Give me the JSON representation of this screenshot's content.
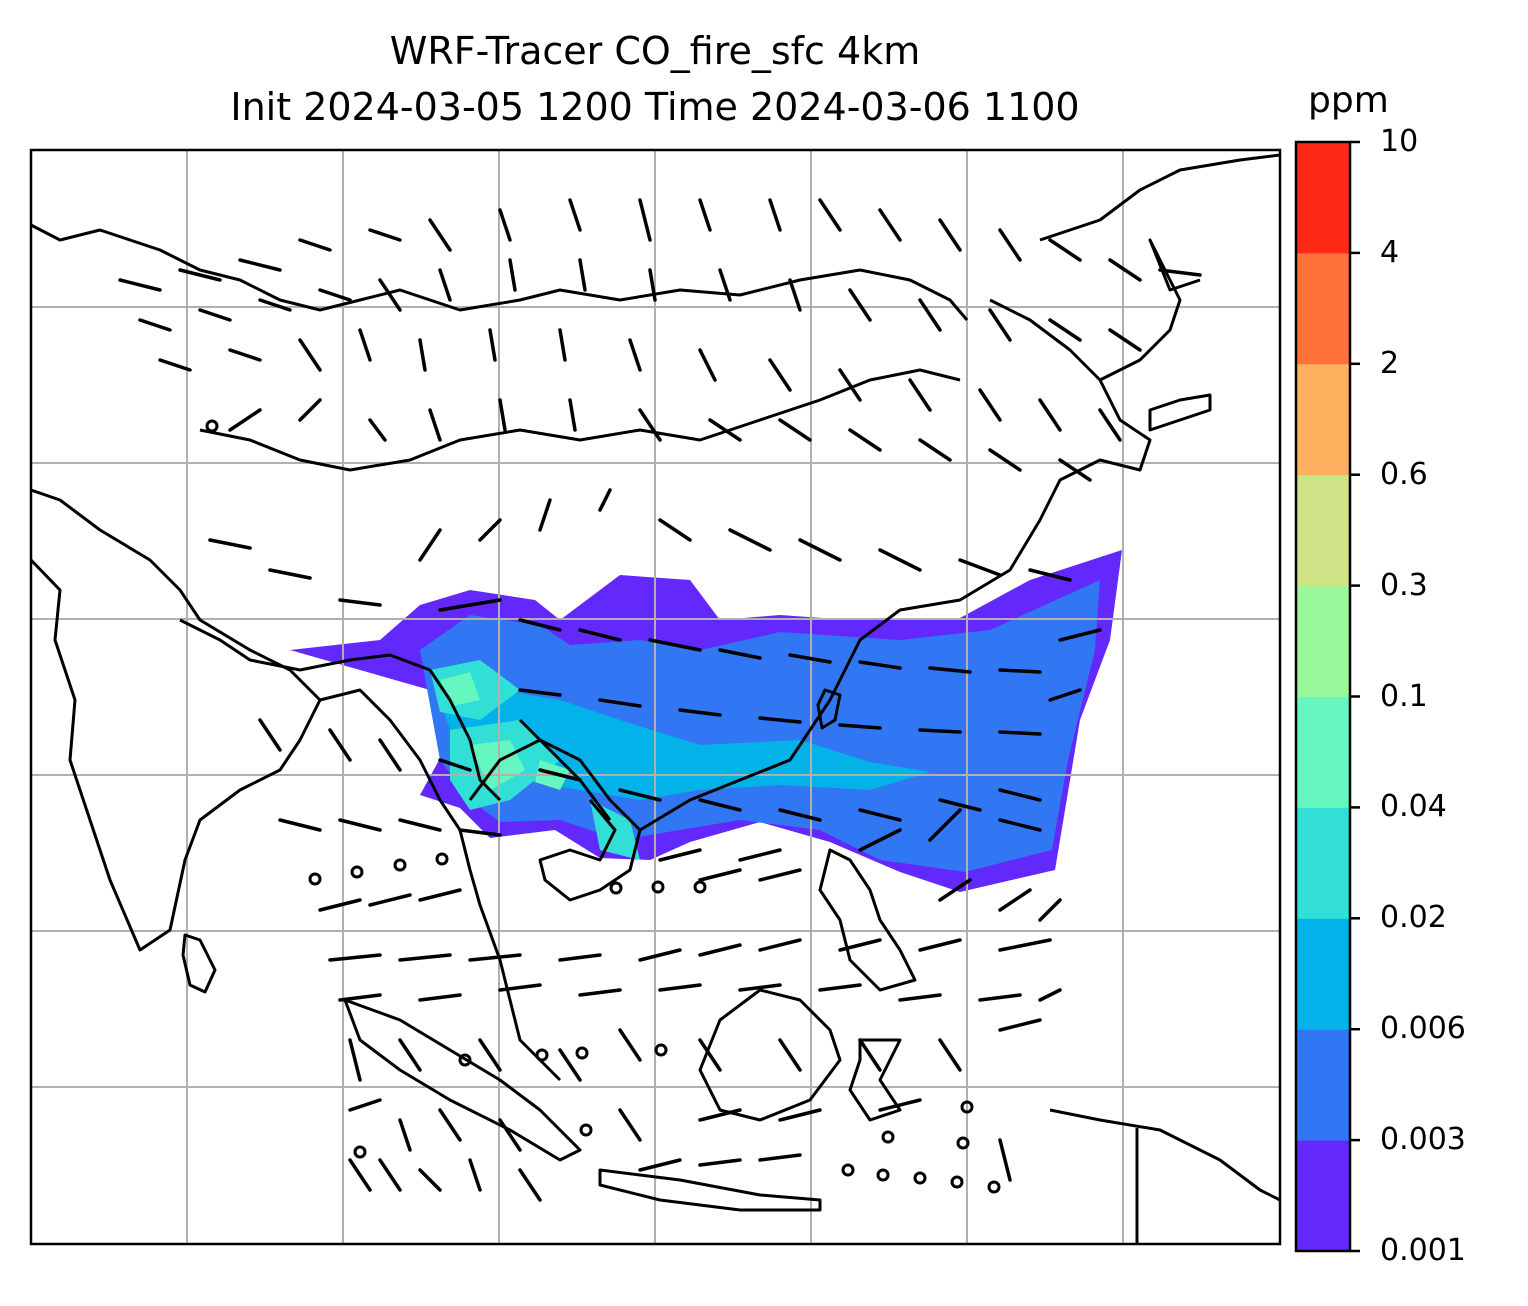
{
  "title": {
    "line1": "WRF-Tracer CO_fire_sfc 4km",
    "line2": "Init 2024-03-05 1200 Time 2024-03-06 1100"
  },
  "colorbar": {
    "unit": "ppm",
    "levels": [
      "0.001",
      "0.003",
      "0.006",
      "0.02",
      "0.04",
      "0.1",
      "0.3",
      "0.6",
      "2",
      "4",
      "10"
    ],
    "colors": [
      "#6328fb",
      "#3176f2",
      "#04b2ea",
      "#32dfd6",
      "#66f6c0",
      "#99f89a",
      "#cde386",
      "#ffb05f",
      "#ff7339",
      "#ff2a16"
    ]
  },
  "map": {
    "gridlines": true,
    "coastline_color": "#000000",
    "tracer_plume_levels": [
      "0.001",
      "0.003",
      "0.006",
      "0.02",
      "0.04"
    ]
  }
}
